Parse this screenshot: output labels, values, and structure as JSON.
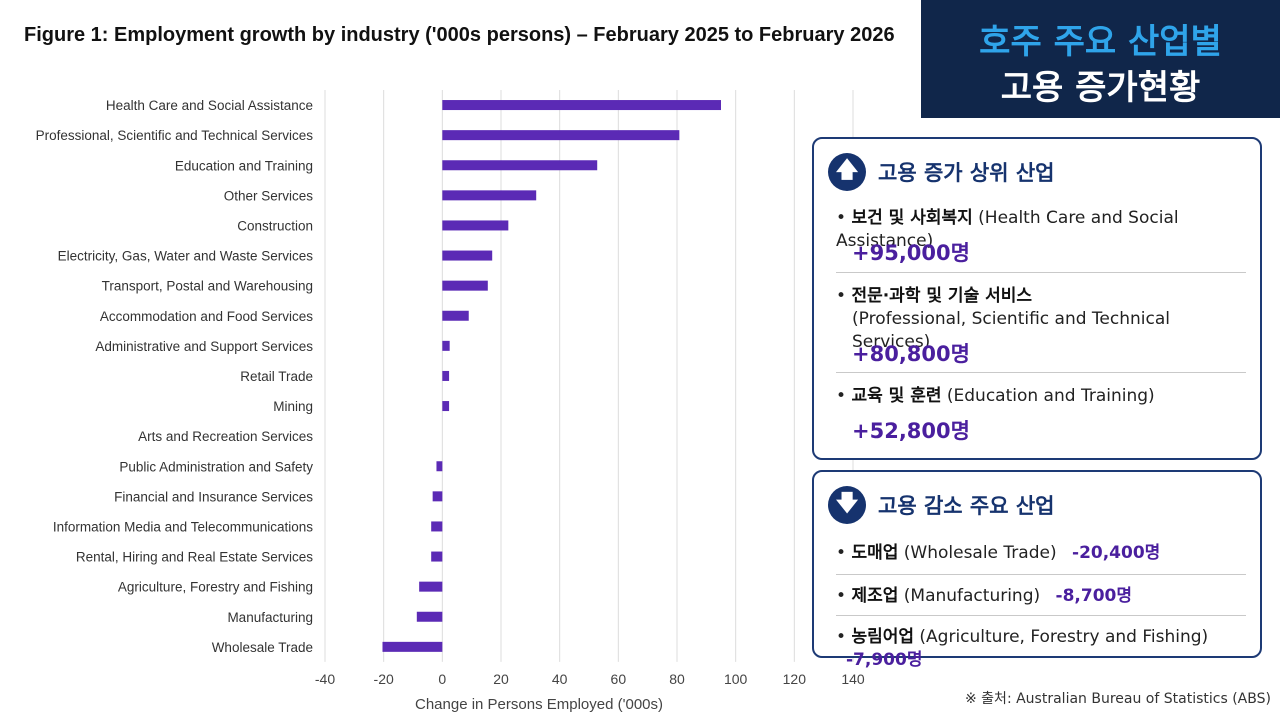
{
  "figure_title": "Figure 1: Employment growth by industry ('000s persons) – February 2025 to February 2026",
  "badge": {
    "line1": "호주 주요 산업별",
    "line2": "고용 증가현황"
  },
  "chart_data": {
    "type": "bar",
    "orientation": "horizontal",
    "categories": [
      "Health Care and Social Assistance",
      "Professional, Scientific and Technical Services",
      "Education and Training",
      "Other Services",
      "Construction",
      "Electricity, Gas, Water and Waste Services",
      "Transport, Postal and Warehousing",
      "Accommodation and Food Services",
      "Administrative and Support Services",
      "Retail Trade",
      "Mining",
      "Arts and Recreation Services",
      "Public Administration and Safety",
      "Financial and Insurance Services",
      "Information Media and Telecommunications",
      "Rental, Hiring and Real Estate Services",
      "Agriculture, Forestry and Fishing",
      "Manufacturing",
      "Wholesale Trade"
    ],
    "values": [
      95,
      80.8,
      52.8,
      32,
      22.5,
      17,
      15.5,
      9,
      2.5,
      2.3,
      2.3,
      0,
      -2,
      -3.3,
      -3.8,
      -3.8,
      -7.9,
      -8.7,
      -20.4
    ],
    "xlabel": "Change in Persons Employed ('000s)",
    "xlim": [
      -40,
      140
    ],
    "xticks": [
      -40,
      -20,
      0,
      20,
      40,
      60,
      80,
      100,
      120,
      140
    ],
    "bar_color": "#5b2ab5",
    "grid": "vertical"
  },
  "increase_panel": {
    "title": "고용 증가 상위 산업",
    "icon": "arrow-up-icon",
    "items": [
      {
        "name_ko": "보건 및 사회복지",
        "name_en": "(Health Care and Social Assistance)",
        "value": "+95,000명"
      },
      {
        "name_ko": "전문·과학 및 기술 서비스",
        "name_en": "(Professional, Scientific and Technical Services)",
        "value": "+80,800명"
      },
      {
        "name_ko": "교육 및 훈련",
        "name_en": "(Education and Training)",
        "value": "+52,800명"
      }
    ]
  },
  "decrease_panel": {
    "title": "고용 감소 주요 산업",
    "icon": "arrow-down-icon",
    "items": [
      {
        "name_ko": "도매업",
        "name_en": "(Wholesale Trade)",
        "value": "-20,400명"
      },
      {
        "name_ko": "제조업",
        "name_en": "(Manufacturing)",
        "value": "-8,700명"
      },
      {
        "name_ko": "농림어업",
        "name_en": "(Agriculture, Forestry and Fishing)",
        "value": "-7,900명"
      }
    ]
  },
  "source": "※ 출처: Australian Bureau of Statistics (ABS)",
  "colors": {
    "accent": "#5b2ab5",
    "navy": "#10264a",
    "badge_highlight": "#2fa4ea",
    "value_text": "#4a1f9e"
  }
}
